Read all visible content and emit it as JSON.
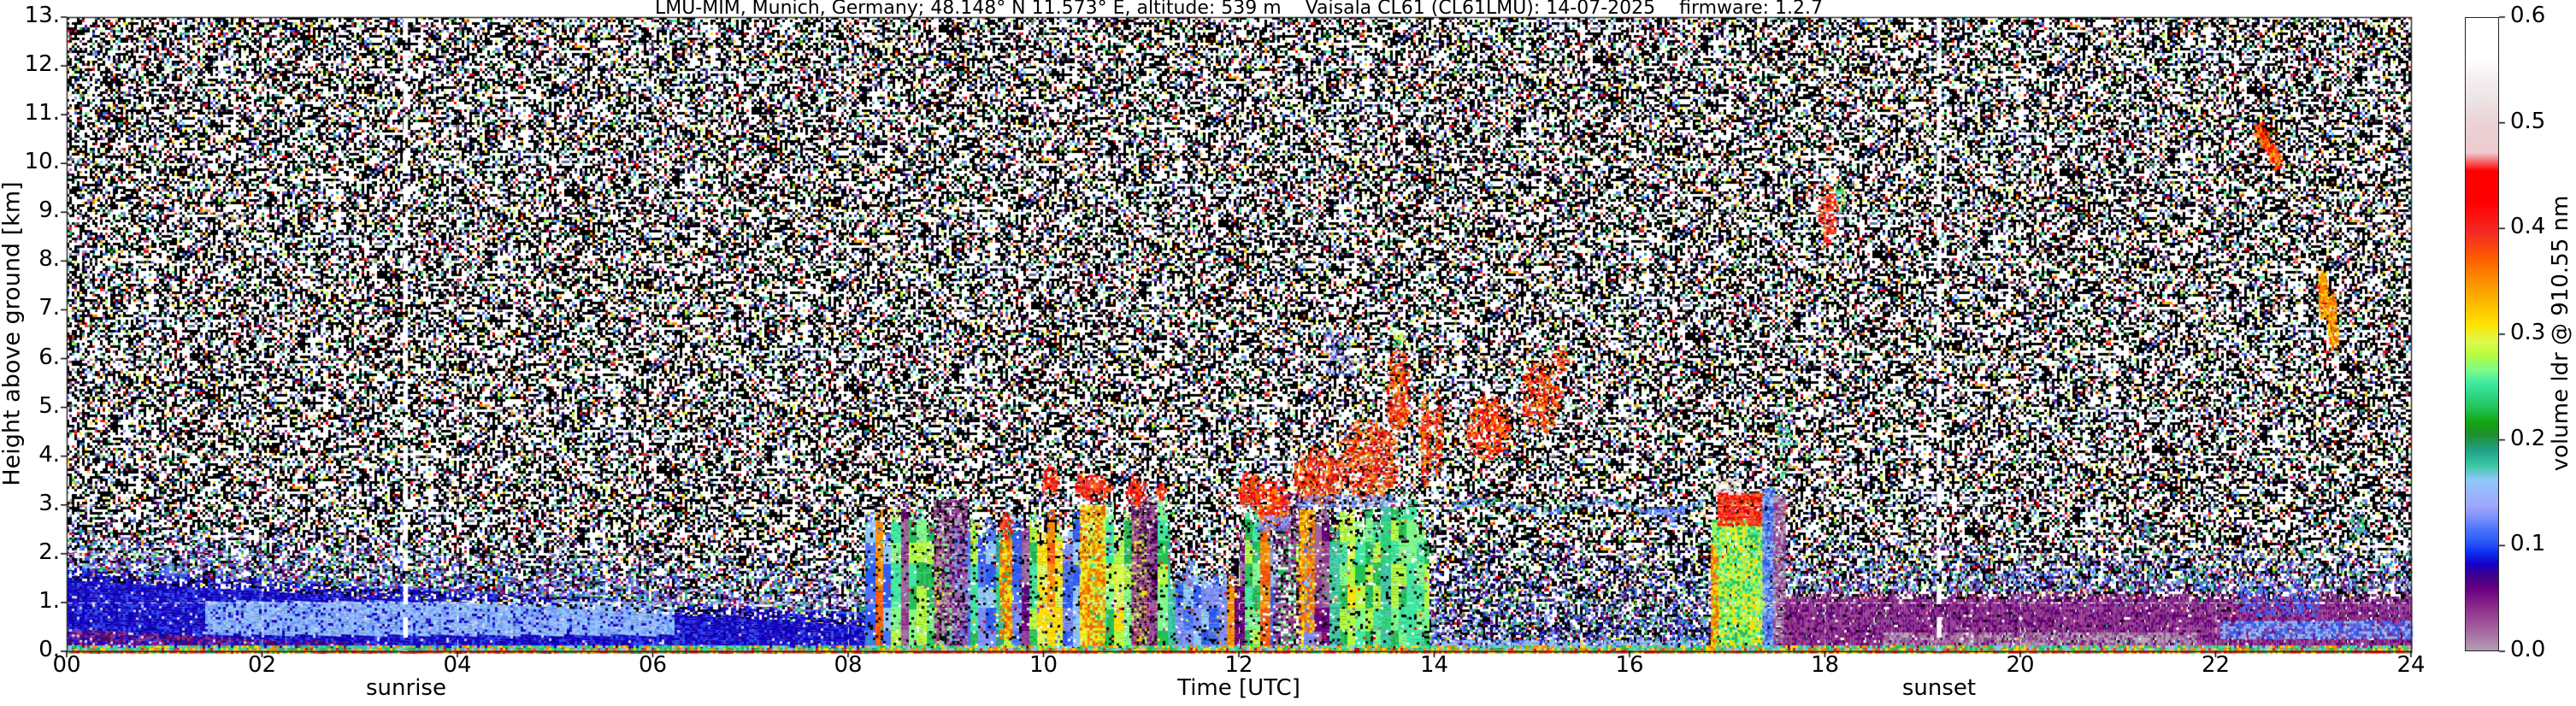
{
  "title": "LMU-MIM, Munich, Germany; 48.148° N 11.573° E, altitude: 539 m    Vaisala CL61 (CL61LMU): 14-07-2025    firmware: 1.2.7",
  "axes": {
    "xlabel": "Time [UTC]",
    "ylabel": "Height above ground [km]",
    "x_ticks": [
      "00",
      "02",
      "04",
      "06",
      "08",
      "10",
      "12",
      "14",
      "16",
      "18",
      "20",
      "22",
      "24"
    ],
    "y_ticks": [
      "0.",
      "1.",
      "2.",
      "3.",
      "4.",
      "5.",
      "6.",
      "7.",
      "8.",
      "9.",
      "10.",
      "11.",
      "12.",
      "13."
    ]
  },
  "annotations": {
    "sunrise_label": "sunrise",
    "sunset_label": "sunset"
  },
  "colorbar": {
    "label": "volume ldr @ 910.55 nm",
    "ticks": [
      "0.0",
      "0.1",
      "0.2",
      "0.3",
      "0.4",
      "0.5",
      "0.6"
    ],
    "min": 0.0,
    "max": 0.6,
    "stops": [
      [
        0.0,
        "#b29eb4"
      ],
      [
        0.02,
        "#a4639f"
      ],
      [
        0.04,
        "#8f2d8a"
      ],
      [
        0.058,
        "#6a0080"
      ],
      [
        0.072,
        "#3a0090"
      ],
      [
        0.082,
        "#1500c8"
      ],
      [
        0.093,
        "#0b2ff2"
      ],
      [
        0.104,
        "#2e5cf8"
      ],
      [
        0.115,
        "#4a74fa"
      ],
      [
        0.126,
        "#7c90fb"
      ],
      [
        0.137,
        "#a0a6fc"
      ],
      [
        0.149,
        "#98b6fc"
      ],
      [
        0.162,
        "#8ec8fc"
      ],
      [
        0.175,
        "#3cc8a4"
      ],
      [
        0.19,
        "#20a086"
      ],
      [
        0.205,
        "#1d8f2c"
      ],
      [
        0.217,
        "#12a60f"
      ],
      [
        0.229,
        "#22c155"
      ],
      [
        0.241,
        "#2ed47e"
      ],
      [
        0.253,
        "#3ee8a0"
      ],
      [
        0.266,
        "#7efb89"
      ],
      [
        0.28,
        "#b5fb3f"
      ],
      [
        0.293,
        "#ddf94a"
      ],
      [
        0.31,
        "#ffe000"
      ],
      [
        0.33,
        "#fcb800"
      ],
      [
        0.35,
        "#fc9000"
      ],
      [
        0.373,
        "#fc5a00"
      ],
      [
        0.396,
        "#f32a24"
      ],
      [
        0.425,
        "#fe0000"
      ],
      [
        0.455,
        "#fe0000"
      ],
      [
        0.472,
        "#eec9cd"
      ],
      [
        0.5,
        "#ecd3d7"
      ],
      [
        0.52,
        "#ece2e4"
      ],
      [
        0.545,
        "#f5f0f1"
      ],
      [
        0.56,
        "#ffffff"
      ],
      [
        0.6,
        "#ffffff"
      ]
    ]
  },
  "chart_data": {
    "type": "heatmap",
    "x_axis": {
      "label": "Time [UTC]",
      "range_hours": [
        0,
        24
      ],
      "tick_step_hours": 2
    },
    "y_axis": {
      "label": "Height above ground [km]",
      "range_km": [
        0,
        13
      ],
      "tick_step_km": 1
    },
    "value_axis": {
      "label": "volume ldr @ 910.55 nm",
      "range": [
        0.0,
        0.6
      ]
    },
    "sunrise_utc": 3.47,
    "sunset_utc": 19.17,
    "grid": {
      "horizontal_km": [
        1,
        2,
        3,
        4,
        5,
        6,
        7,
        8,
        9,
        10,
        11,
        12
      ],
      "vertical_hours": [
        2,
        4,
        6,
        8,
        10,
        12,
        14,
        16,
        18,
        20,
        22
      ],
      "style": "white-dashed"
    },
    "noise": {
      "p_white": 0.44,
      "p_black": 0.4,
      "p_color": 0.16
    },
    "palette": [
      "#fe0000",
      "#fc9000",
      "#ffe000",
      "#22c155",
      "#3ee8a0",
      "#8ec8fc",
      "#4a74fa",
      "#2e5cf8",
      "#6a0080",
      "#983a93",
      "#a4639f",
      "#7c90fb",
      "#b5fb3f",
      "#20a086",
      "#f32a24",
      "#eec9cd"
    ],
    "features": [
      {
        "kind": "night_bl",
        "t": [
          0,
          8.25
        ],
        "top_start": 1.72,
        "top_end": 0.78,
        "body": [
          "#1a10cf",
          "#0d00b0",
          "#2e46ee",
          "#1500c8"
        ],
        "ground_purple": {
          "t": [
            0,
            3.2
          ],
          "h_top": 0.5,
          "colors": [
            "#6a0080",
            "#8f2d8a",
            "#45085f"
          ]
        },
        "lifted_band": {
          "t": [
            1.4,
            6.2
          ],
          "h": [
            0.35,
            1.05
          ],
          "colors": [
            "#8ec8fc",
            "#98b6fc",
            "#6f9bf8"
          ]
        }
      },
      {
        "kind": "halo",
        "t": [
          0,
          8.25
        ],
        "base_start": 1.72,
        "base_end": 0.78,
        "rise": 1.5,
        "density": 0.55,
        "colors": [
          "#2e5cf8",
          "#4a74fa",
          "#7c90fb",
          "#6a0080",
          "#983a93",
          "#22c155",
          "#8ec8fc"
        ]
      },
      {
        "kind": "mottle",
        "t": [
          13.95,
          16.85
        ],
        "h": [
          0,
          2.5
        ],
        "density": 0.5,
        "fade_top": 1,
        "colors": [
          "#000000",
          "#1a10cf",
          "#2e46ee",
          "#4a74fa",
          "#22c155",
          "#6a0080",
          "#7c90fb"
        ]
      },
      {
        "kind": "mottle",
        "t": [
          13.95,
          16.85
        ],
        "h": [
          0.06,
          0.22
        ],
        "density": 0.5,
        "colors": [
          "#8ec8fc",
          "#98b6fc"
        ]
      },
      {
        "kind": "columns",
        "t": [
          8.17,
          13.95
        ],
        "col_w": 0.088,
        "top": [
          2.35,
          3.3
        ],
        "gap": {
          "t": [
            11.28,
            12.0
          ],
          "top": [
            1.5,
            2.0
          ]
        },
        "palettes": [
          [
            "#22c155",
            "#3ee8a0",
            "#7efb89",
            "#b5fb3f"
          ],
          [
            "#ffe000",
            "#ddf94a",
            "#b5fb3f"
          ],
          [
            "#4a74fa",
            "#7c90fb",
            "#8ec8fc",
            "#2e5cf8"
          ],
          [
            "#983a93",
            "#a4639f",
            "#6a0080"
          ],
          [
            "#fc9000",
            "#fc5a00",
            "#ffe000"
          ],
          [
            "#3cc8a4",
            "#20a086",
            "#2ed47e"
          ]
        ],
        "weights": [
          0.36,
          0.15,
          0.2,
          0.13,
          0.06,
          0.1
        ]
      },
      {
        "kind": "mottle",
        "t": [
          8.88,
          9.2
        ],
        "h": [
          0,
          3.1
        ],
        "density": 0.8,
        "colors": [
          "#983a93",
          "#a4639f",
          "#6a0080",
          "#000000",
          "#b29eb4"
        ]
      },
      {
        "kind": "mottle",
        "t": [
          10.9,
          11.14
        ],
        "h": [
          0,
          3.2
        ],
        "density": 0.8,
        "colors": [
          "#983a93",
          "#a4639f",
          "#6a0080",
          "#000000"
        ]
      },
      {
        "kind": "mottle",
        "t": [
          12.35,
          12.62
        ],
        "h": [
          0,
          3.25
        ],
        "density": 0.75,
        "colors": [
          "#983a93",
          "#a4639f",
          "#000000",
          "#ffffff",
          "#6a0080"
        ]
      },
      {
        "kind": "mottle",
        "t": [
          9.55,
          9.68
        ],
        "h": [
          0.3,
          2.3
        ],
        "density": 0.85,
        "colors": [
          "#fc9000",
          "#fc5a00",
          "#ffe000"
        ]
      },
      {
        "kind": "mottle",
        "t": [
          10.37,
          10.63
        ],
        "h": [
          0,
          3.0
        ],
        "density": 0.9,
        "colors": [
          "#fc9000",
          "#ffe000",
          "#fc5a00",
          "#ddf94a"
        ]
      },
      {
        "kind": "mottle",
        "t": [
          12.62,
          12.76
        ],
        "h": [
          0.4,
          2.9
        ],
        "density": 0.8,
        "colors": [
          "#fc9000",
          "#ffe000",
          "#fc5a00"
        ]
      },
      {
        "kind": "blobs",
        "list": [
          [
            9.61,
            2.6,
            0.06,
            0.3,
            0.8
          ],
          [
            10.06,
            3.5,
            0.09,
            0.35,
            0.8
          ],
          [
            10.5,
            3.38,
            0.2,
            0.28,
            0.85
          ],
          [
            10.95,
            3.28,
            0.12,
            0.3,
            0.8
          ],
          [
            11.2,
            3.3,
            0.05,
            0.22,
            0.8
          ],
          [
            12.1,
            3.3,
            0.12,
            0.42,
            0.85
          ]
        ],
        "colors": [
          "#fe0000",
          "#f32a24",
          "#fc5a00"
        ],
        "halo": 0.3,
        "white_frac": 0.05
      },
      {
        "kind": "blobs",
        "list": [
          [
            12.33,
            3.1,
            0.18,
            0.5,
            0.85
          ],
          [
            12.8,
            3.6,
            0.26,
            0.6,
            0.8
          ],
          [
            13.32,
            3.95,
            0.32,
            0.85,
            0.8
          ],
          [
            13.6,
            4.9,
            0.12,
            0.35,
            0.6
          ],
          [
            13.62,
            5.4,
            0.13,
            0.95,
            0.6
          ],
          [
            13.9,
            4.4,
            0.06,
            1.05,
            0.85
          ],
          [
            14.03,
            4.5,
            0.05,
            0.95,
            0.8
          ],
          [
            14.55,
            4.6,
            0.24,
            0.68,
            0.75
          ],
          [
            15.08,
            5.25,
            0.22,
            0.78,
            0.7
          ],
          [
            15.28,
            6.0,
            0.09,
            0.3,
            0.7
          ]
        ],
        "colors": [
          "#fe0000",
          "#f32a24",
          "#fc5a00",
          "#fc9000"
        ],
        "halo": 0.35,
        "white_frac": 0.1
      },
      {
        "kind": "blobs",
        "list": [
          [
            13.63,
            6.45,
            0.07,
            0.22,
            0.5
          ],
          [
            18.14,
            9.35,
            0.06,
            0.35,
            0.5
          ]
        ],
        "colors": [
          "#22c155",
          "#b5fb3f",
          "#ddf94a",
          "#3ee8a0"
        ],
        "halo": 0,
        "white_frac": 0
      },
      {
        "kind": "mottle",
        "t": [
          12.2,
          12.5
        ],
        "h": [
          2.5,
          2.78
        ],
        "density": 0.5,
        "colors": [
          "#7c90fb",
          "#4a74fa",
          "#a0a6fc"
        ]
      },
      {
        "kind": "mottle",
        "t": [
          12.6,
          13.6
        ],
        "h": [
          2.95,
          3.2
        ],
        "density": 0.45,
        "colors": [
          "#7c90fb",
          "#4a74fa",
          "#a0a6fc"
        ]
      },
      {
        "kind": "mottle",
        "t": [
          12.88,
          13.15
        ],
        "h": [
          5.7,
          6.6
        ],
        "density": 0.22,
        "colors": [
          "#7c90fb",
          "#a0a6fc",
          "#4a74fa"
        ]
      },
      {
        "kind": "dotline",
        "t": [
          14.2,
          16.75
        ],
        "h": 3.0,
        "amp": 0.1,
        "density": 0.5,
        "colors": [
          "#4a74fa",
          "#8ec8fc",
          "#2e5cf8",
          "#22c155"
        ]
      },
      {
        "kind": "mottle",
        "t": [
          16.2,
          16.55
        ],
        "h": [
          2.55,
          2.95
        ],
        "density": 0.3,
        "colors": [
          "#4a74fa",
          "#7c90fb"
        ]
      },
      {
        "kind": "mottle",
        "t": [
          16.84,
          17.38
        ],
        "h": [
          0,
          2.7
        ],
        "density": 0.95,
        "colors": [
          "#22c155",
          "#7efb89",
          "#b5fb3f",
          "#ddf94a",
          "#3ee8a0",
          "#ffe000"
        ]
      },
      {
        "kind": "mottle",
        "t": [
          16.83,
          16.89
        ],
        "h": [
          0,
          2.2
        ],
        "density": 0.8,
        "colors": [
          "#fc5a00",
          "#fc9000",
          "#ffe000"
        ]
      },
      {
        "kind": "mottle",
        "t": [
          16.9,
          17.36
        ],
        "h": [
          2.6,
          3.25
        ],
        "density": 0.9,
        "colors": [
          "#fe0000",
          "#f32a24",
          "#fc5a00"
        ]
      },
      {
        "kind": "mottle",
        "t": [
          16.88,
          17.12
        ],
        "h": [
          3.2,
          3.62
        ],
        "density": 0.5,
        "colors": [
          "#ffffff",
          "#f5f0f1",
          "#eec9cd"
        ]
      },
      {
        "kind": "mottle",
        "t": [
          17.36,
          17.47
        ],
        "h": [
          0,
          3.35
        ],
        "density": 0.9,
        "colors": [
          "#4a74fa",
          "#8ec8fc",
          "#7c90fb",
          "#2e5cf8"
        ]
      },
      {
        "kind": "mottle",
        "t": [
          17.47,
          17.58
        ],
        "h": [
          0,
          3.2
        ],
        "density": 0.85,
        "colors": [
          "#a4639f",
          "#b29eb4",
          "#983a93"
        ]
      },
      {
        "kind": "mottle",
        "t": [
          17.5,
          17.64
        ],
        "h": [
          3.5,
          5.1
        ],
        "density": 0.25,
        "colors": [
          "#22c155",
          "#3ee8a0",
          "#7c90fb"
        ]
      },
      {
        "kind": "blobs",
        "list": [
          [
            18.02,
            8.95,
            0.1,
            0.65,
            0.75
          ]
        ],
        "colors": [
          "#fe0000",
          "#f32a24",
          "#fc5a00"
        ],
        "halo": 0.3,
        "white_frac": 0.12
      },
      {
        "kind": "evening",
        "t": [
          17.58,
          24
        ],
        "purple_top": 1.28,
        "colors": [
          "#6a0080",
          "#8f2d8a",
          "#983a93"
        ],
        "ground": {
          "t": [
            18.6,
            21.8
          ],
          "h_top": 0.42,
          "colors": [
            "#b29eb4",
            "#a4639f"
          ]
        }
      },
      {
        "kind": "halo",
        "t": [
          17.58,
          24
        ],
        "base_start": 1.28,
        "base_end": 1.28,
        "rise": 1.35,
        "density": 0.5,
        "colors": [
          "#2e5cf8",
          "#4a74fa",
          "#7c90fb",
          "#6a0080",
          "#983a93",
          "#8ec8fc",
          "#22c155"
        ]
      },
      {
        "kind": "mottle",
        "t": [
          22.05,
          24
        ],
        "h": [
          0.3,
          0.62
        ],
        "density": 0.8,
        "colors": [
          "#8ec8fc",
          "#2e5cf8",
          "#4a74fa",
          "#98b6fc"
        ]
      },
      {
        "kind": "mottle",
        "t": [
          22.25,
          23.05
        ],
        "h": [
          0.75,
          1.3
        ],
        "density": 0.35,
        "colors": [
          "#2e5cf8",
          "#4a74fa"
        ]
      },
      {
        "kind": "blobs",
        "list": [
          [
            19.93,
            2.6,
            0.05,
            0.12,
            0.5
          ],
          [
            21.3,
            2.5,
            0.1,
            0.2,
            0.45
          ],
          [
            23.45,
            2.6,
            0.12,
            0.3,
            0.45
          ],
          [
            22.95,
            2.1,
            0.08,
            0.2,
            0.4
          ],
          [
            21.05,
            1.9,
            0.05,
            0.15,
            0.4
          ]
        ],
        "colors": [
          "#3cc8a4",
          "#22c155",
          "#4a74fa",
          "#7c90fb"
        ],
        "halo": 0,
        "white_frac": 0
      },
      {
        "kind": "streak",
        "p0": [
          22.42,
          10.78
        ],
        "p1": [
          22.63,
          10.02
        ],
        "w": 0.14,
        "density": 0.7,
        "colors": [
          "#fe0000",
          "#fc5a00",
          "#fc9000"
        ]
      },
      {
        "kind": "streak",
        "p0": [
          23.08,
          7.75
        ],
        "p1": [
          23.1,
          6.9
        ],
        "w": 0.1,
        "density": 0.6,
        "colors": [
          "#ffe000",
          "#fc9000",
          "#fc5a00"
        ]
      },
      {
        "kind": "streak",
        "p0": [
          23.17,
          7.3
        ],
        "p1": [
          23.2,
          6.3
        ],
        "w": 0.1,
        "density": 0.6,
        "colors": [
          "#ffe000",
          "#fc9000",
          "#fc5a00"
        ]
      },
      {
        "kind": "checker",
        "h": [
          0,
          0.06
        ],
        "density": 1,
        "colors": [
          "#fe0000",
          "#fc5a00",
          "#ffe000",
          "#22c155",
          "#f32a24"
        ]
      },
      {
        "kind": "checker",
        "h": [
          0.06,
          0.12
        ],
        "density": 0.8,
        "colors": [
          "#22c155",
          "#3ee8a0",
          "#8ec8fc",
          "#ffe000",
          "#fc9000",
          "#3cc8a4"
        ]
      }
    ]
  }
}
